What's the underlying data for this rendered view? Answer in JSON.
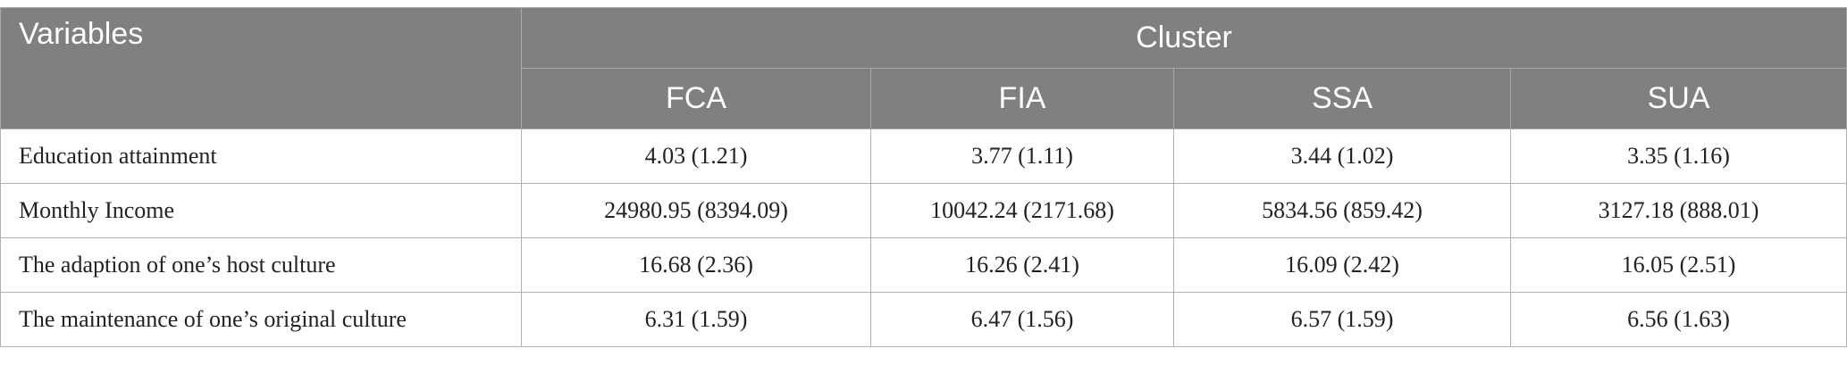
{
  "header": {
    "variables_label": "Variables",
    "cluster_label": "Cluster",
    "clusters": [
      "FCA",
      "FIA",
      "SSA",
      "SUA"
    ]
  },
  "rows": [
    {
      "label": "Education attainment",
      "values": [
        "4.03 (1.21)",
        "3.77 (1.11)",
        "3.44 (1.02)",
        "3.35 (1.16)"
      ]
    },
    {
      "label": "Monthly Income",
      "values": [
        "24980.95 (8394.09)",
        "10042.24 (2171.68)",
        "5834.56 (859.42)",
        "3127.18 (888.01)"
      ]
    },
    {
      "label": "The adaption of one’s host culture",
      "values": [
        "16.68 (2.36)",
        "16.26 (2.41)",
        "16.09 (2.42)",
        "16.05 (2.51)"
      ]
    },
    {
      "label": "The maintenance of one’s original culture",
      "values": [
        "6.31 (1.59)",
        "6.47 (1.56)",
        "6.57 (1.59)",
        "6.56 (1.63)"
      ]
    }
  ]
}
